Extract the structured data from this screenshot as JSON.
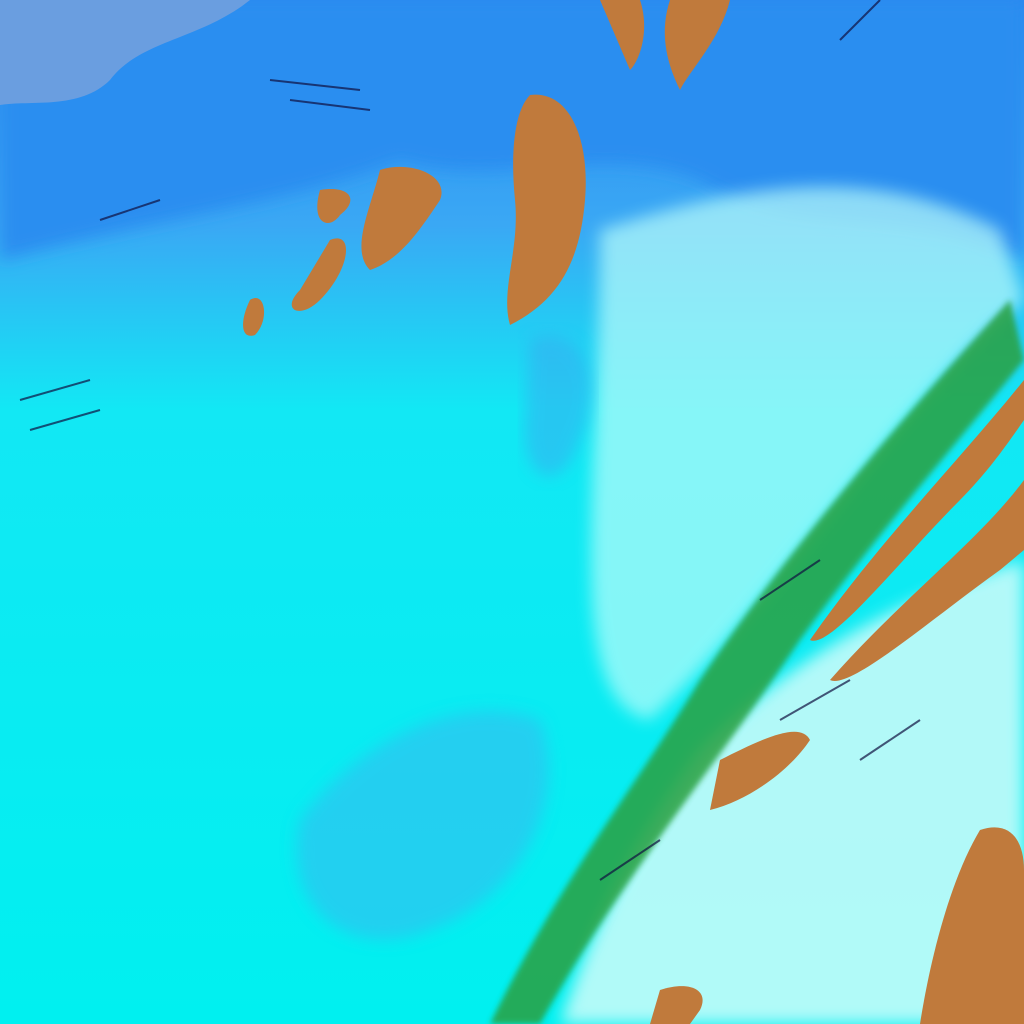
{
  "image": {
    "kind": "false-color satellite imagery",
    "colors": {
      "snow_ice": "#10f4f0",
      "bright_cloud": "#c8fcfa",
      "clear_sky_water": "#2a8cf0",
      "deep_water": "#1a5ce0",
      "ice_cloud": "#c07a3c",
      "vegetation_edge": "#2aa040",
      "dark_shadow": "#101040",
      "land_top_left": "#6a9ee0"
    }
  }
}
